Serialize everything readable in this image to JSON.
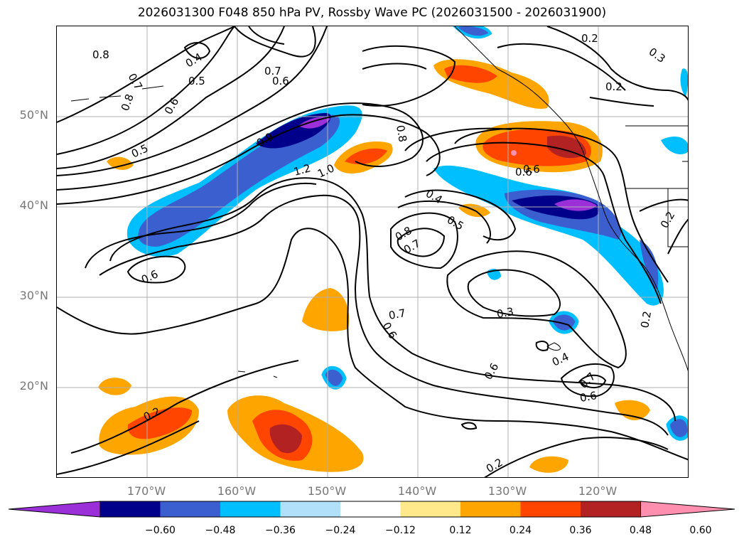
{
  "title": "2026031300 F048 850 hPa PV, Rossby Wave PC (2026031500 - 2026031900)",
  "lat_labels": [
    "50°N",
    "40°N",
    "30°N",
    "20°N"
  ],
  "lon_labels": [
    "170°W",
    "160°W",
    "150°W",
    "140°W",
    "130°W",
    "120°W"
  ],
  "colorbar": {
    "colors": [
      "#9b30d9",
      "#00008b",
      "#3b5fcf",
      "#00bfff",
      "#b0e0fa",
      "#ffffff",
      "#ffe98a",
      "#ffa500",
      "#ff4500",
      "#b22222",
      "#ff8faf"
    ],
    "ticks": [
      "−0.60",
      "−0.48",
      "−0.36",
      "−0.24",
      "−0.12",
      "0.12",
      "0.24",
      "0.36",
      "0.48",
      "0.60"
    ]
  },
  "contour_labels": [
    "0.8",
    "0.7",
    "0.4",
    "0.5",
    "0.6",
    "0.8",
    "0.5",
    "0.6",
    "0.7",
    "0.9",
    "1.2",
    "1.0",
    "0.8",
    "0.4",
    "0.5",
    "0.8",
    "0.7",
    "0.6",
    "0.6",
    "0.7",
    "0.6",
    "0.3",
    "0.4",
    "0.6",
    "0.7",
    "0.6",
    "0.2",
    "0.2",
    "0.2",
    "0.2",
    "0.3",
    "0.6",
    "0.2",
    "0.2"
  ]
}
